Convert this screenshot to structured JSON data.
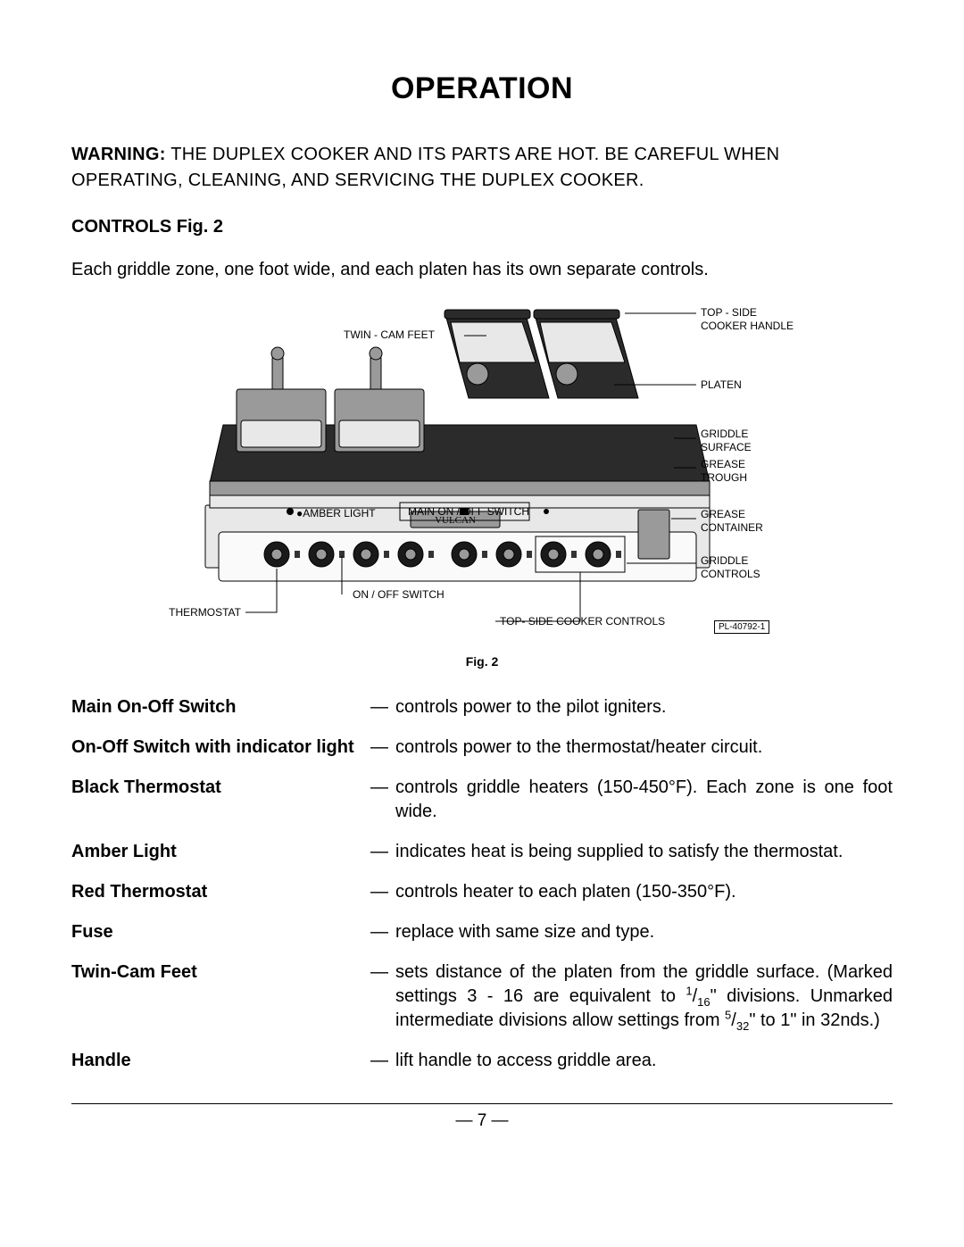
{
  "title": "OPERATION",
  "warning": {
    "label": "WARNING:",
    "text": " THE DUPLEX COOKER AND ITS PARTS ARE HOT.  BE CAREFUL WHEN OPERATING, CLEANING, AND SERVICING THE DUPLEX COOKER."
  },
  "controls_heading": "CONTROLS Fig. 2",
  "controls_intro": "Each griddle zone, one foot wide, and each platen has its own separate controls.",
  "diagram": {
    "labels": {
      "twin_cam_feet": "TWIN - CAM FEET",
      "top_side_handle_l1": "TOP - SIDE",
      "top_side_handle_l2": "COOKER HANDLE",
      "platen": "PLATEN",
      "griddle_surface_l1": "GRIDDLE",
      "griddle_surface_l2": "SURFACE",
      "grease_trough_l1": "GREASE",
      "grease_trough_l2": "TROUGH",
      "grease_container_l1": "GREASE",
      "grease_container_l2": "CONTAINER",
      "griddle_controls_l1": "GRIDDLE",
      "griddle_controls_l2": "CONTROLS",
      "amber_light": "AMBER LIGHT",
      "main_switch": "MAIN ON / OFF SWITCH",
      "on_off_switch": "ON / OFF SWITCH",
      "thermostat": "THERMOSTAT",
      "top_side_controls": "TOP- SIDE COOKER CONTROLS",
      "pl_number": "PL-40792-1"
    },
    "caption": "Fig. 2"
  },
  "controls_table": [
    {
      "term": "Main On-Off Switch",
      "def": "controls power to the pilot igniters."
    },
    {
      "term": "On-Off Switch with indicator light",
      "def": "controls power to the thermostat/heater circuit."
    },
    {
      "term": "Black Thermostat",
      "def": "controls griddle heaters (150-450°F).  Each zone is one foot wide."
    },
    {
      "term": "Amber Light",
      "def": " indicates heat is being supplied to satisfy the thermostat."
    },
    {
      "term": "Red Thermostat",
      "def": "controls heater to each platen (150-350°F)."
    },
    {
      "term": "Fuse",
      "def": "replace with same size and type."
    },
    {
      "term": "Twin-Cam Feet",
      "def_html": "sets distance of the platen from the griddle surface.  (Marked settings 3 - 16 are equivalent to <sup>1</sup>/<sub>16</sub>\" divisions.  Unmarked intermediate divisions allow settings from <sup>5</sup>/<sub>32</sub>\" to 1\" in 32nds.)"
    },
    {
      "term": "Handle",
      "def": "lift handle to access griddle area."
    }
  ],
  "page_number": "— 7 —"
}
